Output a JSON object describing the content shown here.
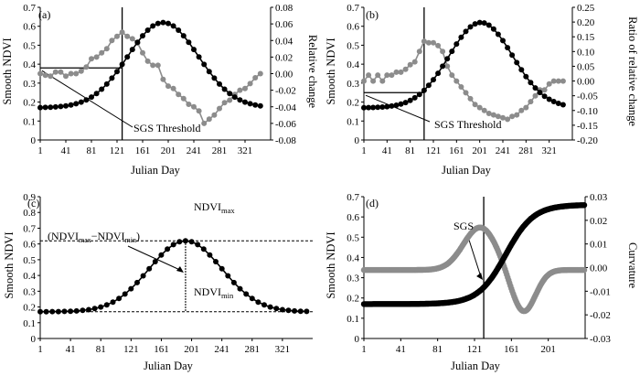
{
  "colors": {
    "primary": "#000000",
    "secondary": "#8c8c8c",
    "axis": "#000000"
  },
  "chart_data": [
    {
      "panel": "(a)",
      "type": "line",
      "xlabel": "Julian Day",
      "ylabel": "Smooth NDVI",
      "y2label": "Relative change",
      "xlim": [
        1,
        361
      ],
      "ylim": [
        0,
        0.7
      ],
      "y2lim": [
        -0.08,
        0.08
      ],
      "xticks": [
        "1",
        "41",
        "81",
        "121",
        "161",
        "201",
        "241",
        "281",
        "321"
      ],
      "yticks": [
        "0",
        "0.1",
        "0.2",
        "0.3",
        "0.4",
        "0.5",
        "0.6",
        "0.7"
      ],
      "y2ticks": [
        "-0.08",
        "-0.06",
        "-0.04",
        "-0.02",
        "0.00",
        "0.02",
        "0.04",
        "0.06",
        "0.08"
      ],
      "annotations": [
        {
          "text": "SGS Threshold"
        }
      ],
      "threshold": {
        "julian_day": 129,
        "ndvi": 0.38
      },
      "series": [
        {
          "axis": "left",
          "color": "#000000",
          "ndvi_min": 0.17,
          "ndvi_max": 0.62,
          "peak_day": 193,
          "width": 55,
          "step": 8
        },
        {
          "axis": "right",
          "x": [
            1,
            9,
            17,
            25,
            33,
            41,
            49,
            57,
            65,
            73,
            81,
            89,
            97,
            105,
            113,
            121,
            129,
            137,
            145,
            153,
            161,
            169,
            177,
            185,
            193,
            201,
            209,
            217,
            225,
            233,
            241,
            249,
            257,
            265,
            273,
            281,
            289,
            297,
            305,
            313,
            321,
            329,
            337,
            345
          ],
          "values": [
            0.0,
            -0.002,
            -0.003,
            0.002,
            0.002,
            -0.003,
            0.0,
            0.0,
            0.003,
            0.008,
            0.018,
            0.02,
            0.025,
            0.03,
            0.04,
            0.045,
            0.05,
            0.045,
            0.042,
            0.037,
            0.025,
            0.015,
            0.01,
            0.01,
            -0.007,
            -0.015,
            -0.018,
            -0.025,
            -0.03,
            -0.037,
            -0.04,
            -0.045,
            -0.06,
            -0.055,
            -0.05,
            -0.042,
            -0.035,
            -0.032,
            -0.025,
            -0.02,
            -0.018,
            -0.012,
            -0.005,
            0.0
          ],
          "color": "#8c8c8c"
        }
      ]
    },
    {
      "panel": "(b)",
      "type": "line",
      "xlabel": "Julian Day",
      "ylabel": "Smooth NDVI",
      "y2label": "Ratio of relative change",
      "xlim": [
        1,
        361
      ],
      "ylim": [
        0,
        0.7
      ],
      "y2lim": [
        -0.2,
        0.25
      ],
      "xticks": [
        "1",
        "41",
        "81",
        "121",
        "161",
        "201",
        "241",
        "281",
        "321"
      ],
      "yticks": [
        "0",
        "0.1",
        "0.2",
        "0.3",
        "0.4",
        "0.5",
        "0.6",
        "0.7"
      ],
      "y2ticks": [
        "-0.20",
        "-0.15",
        "-0.10",
        "-0.05",
        "0.00",
        "0.05",
        "0.10",
        "0.15",
        "0.20",
        "0.25"
      ],
      "annotations": [
        {
          "text": "SGS Threshold"
        }
      ],
      "threshold": {
        "julian_day": 105,
        "ndvi": 0.25
      },
      "series": [
        {
          "axis": "left",
          "color": "#000000",
          "ndvi_min": 0.17,
          "ndvi_max": 0.62,
          "peak_day": 203,
          "width": 55,
          "step": 8
        },
        {
          "axis": "right",
          "x": [
            1,
            9,
            17,
            25,
            33,
            41,
            49,
            57,
            65,
            73,
            81,
            89,
            97,
            105,
            113,
            121,
            129,
            137,
            145,
            153,
            161,
            169,
            177,
            185,
            193,
            201,
            209,
            217,
            225,
            233,
            241,
            249,
            257,
            265,
            273,
            281,
            289,
            297,
            305,
            313,
            321,
            329,
            337,
            345
          ],
          "values": [
            0.0,
            0.02,
            0.0,
            0.02,
            0.0,
            0.02,
            0.02,
            0.03,
            0.03,
            0.04,
            0.055,
            0.065,
            0.1,
            0.135,
            0.13,
            0.13,
            0.12,
            0.1,
            0.05,
            0.02,
            0.0,
            -0.02,
            -0.04,
            -0.06,
            -0.08,
            -0.09,
            -0.1,
            -0.11,
            -0.115,
            -0.12,
            -0.125,
            -0.13,
            -0.12,
            -0.115,
            -0.1,
            -0.09,
            -0.07,
            -0.05,
            -0.03,
            -0.03,
            -0.01,
            0.0,
            0.0,
            0.0
          ],
          "color": "#8c8c8c"
        }
      ]
    },
    {
      "panel": "(c)",
      "type": "line",
      "xlabel": "Julian Day",
      "ylabel": "Smooth NDVI",
      "xlim": [
        1,
        361
      ],
      "ylim": [
        0,
        0.9
      ],
      "xticks": [
        "1",
        "41",
        "81",
        "121",
        "161",
        "201",
        "241",
        "281",
        "321"
      ],
      "yticks": [
        "0",
        "0.1",
        "0.2",
        "0.3",
        "0.4",
        "0.5",
        "0.6",
        "0.7",
        "0.8",
        "0.9"
      ],
      "annotations": [
        {
          "text": "NDVI",
          "sub": "max"
        },
        {
          "text": "NDVI",
          "sub": "min"
        },
        {
          "text": "(NDVI",
          "sub1": "max",
          "mid": "−NDVI",
          "sub2": "min",
          "tail": ")"
        }
      ],
      "peak_day": 193,
      "series": [
        {
          "axis": "left",
          "color": "#000000",
          "ndvi_min": 0.17,
          "ndvi_max": 0.62,
          "peak_day": 193,
          "width": 48,
          "step": 8
        }
      ]
    },
    {
      "panel": "(d)",
      "type": "line",
      "xlabel": "Julian Day",
      "ylabel": "Smooth NDVI",
      "y2label": "Curvature",
      "xlim": [
        1,
        241
      ],
      "ylim": [
        0,
        0.7
      ],
      "y2lim": [
        -0.03,
        0.03
      ],
      "xticks": [
        "1",
        "41",
        "81",
        "121",
        "161",
        "201"
      ],
      "yticks": [
        "0",
        "0.1",
        "0.2",
        "0.3",
        "0.4",
        "0.5",
        "0.6",
        "0.7"
      ],
      "y2ticks": [
        "-0.03",
        "-0.02",
        "-0.01",
        "0.00",
        "0.01",
        "0.02",
        "0.03"
      ],
      "annotations": [
        {
          "text": "SGS"
        }
      ],
      "threshold": {
        "julian_day": 131
      },
      "series": [
        {
          "axis": "left",
          "color": "#000000",
          "ndvi_min": 0.17,
          "ndvi_max": 0.66,
          "midpoint_day": 155,
          "scale": 15,
          "step": 1
        },
        {
          "axis": "right",
          "color": "#8c8c8c",
          "base": -0.001,
          "bump_amp": 0.018,
          "bump_day": 127,
          "bump_width": 18,
          "dip_amp": -0.018,
          "dip_day": 174,
          "dip_width": 13,
          "step": 1
        }
      ]
    }
  ]
}
